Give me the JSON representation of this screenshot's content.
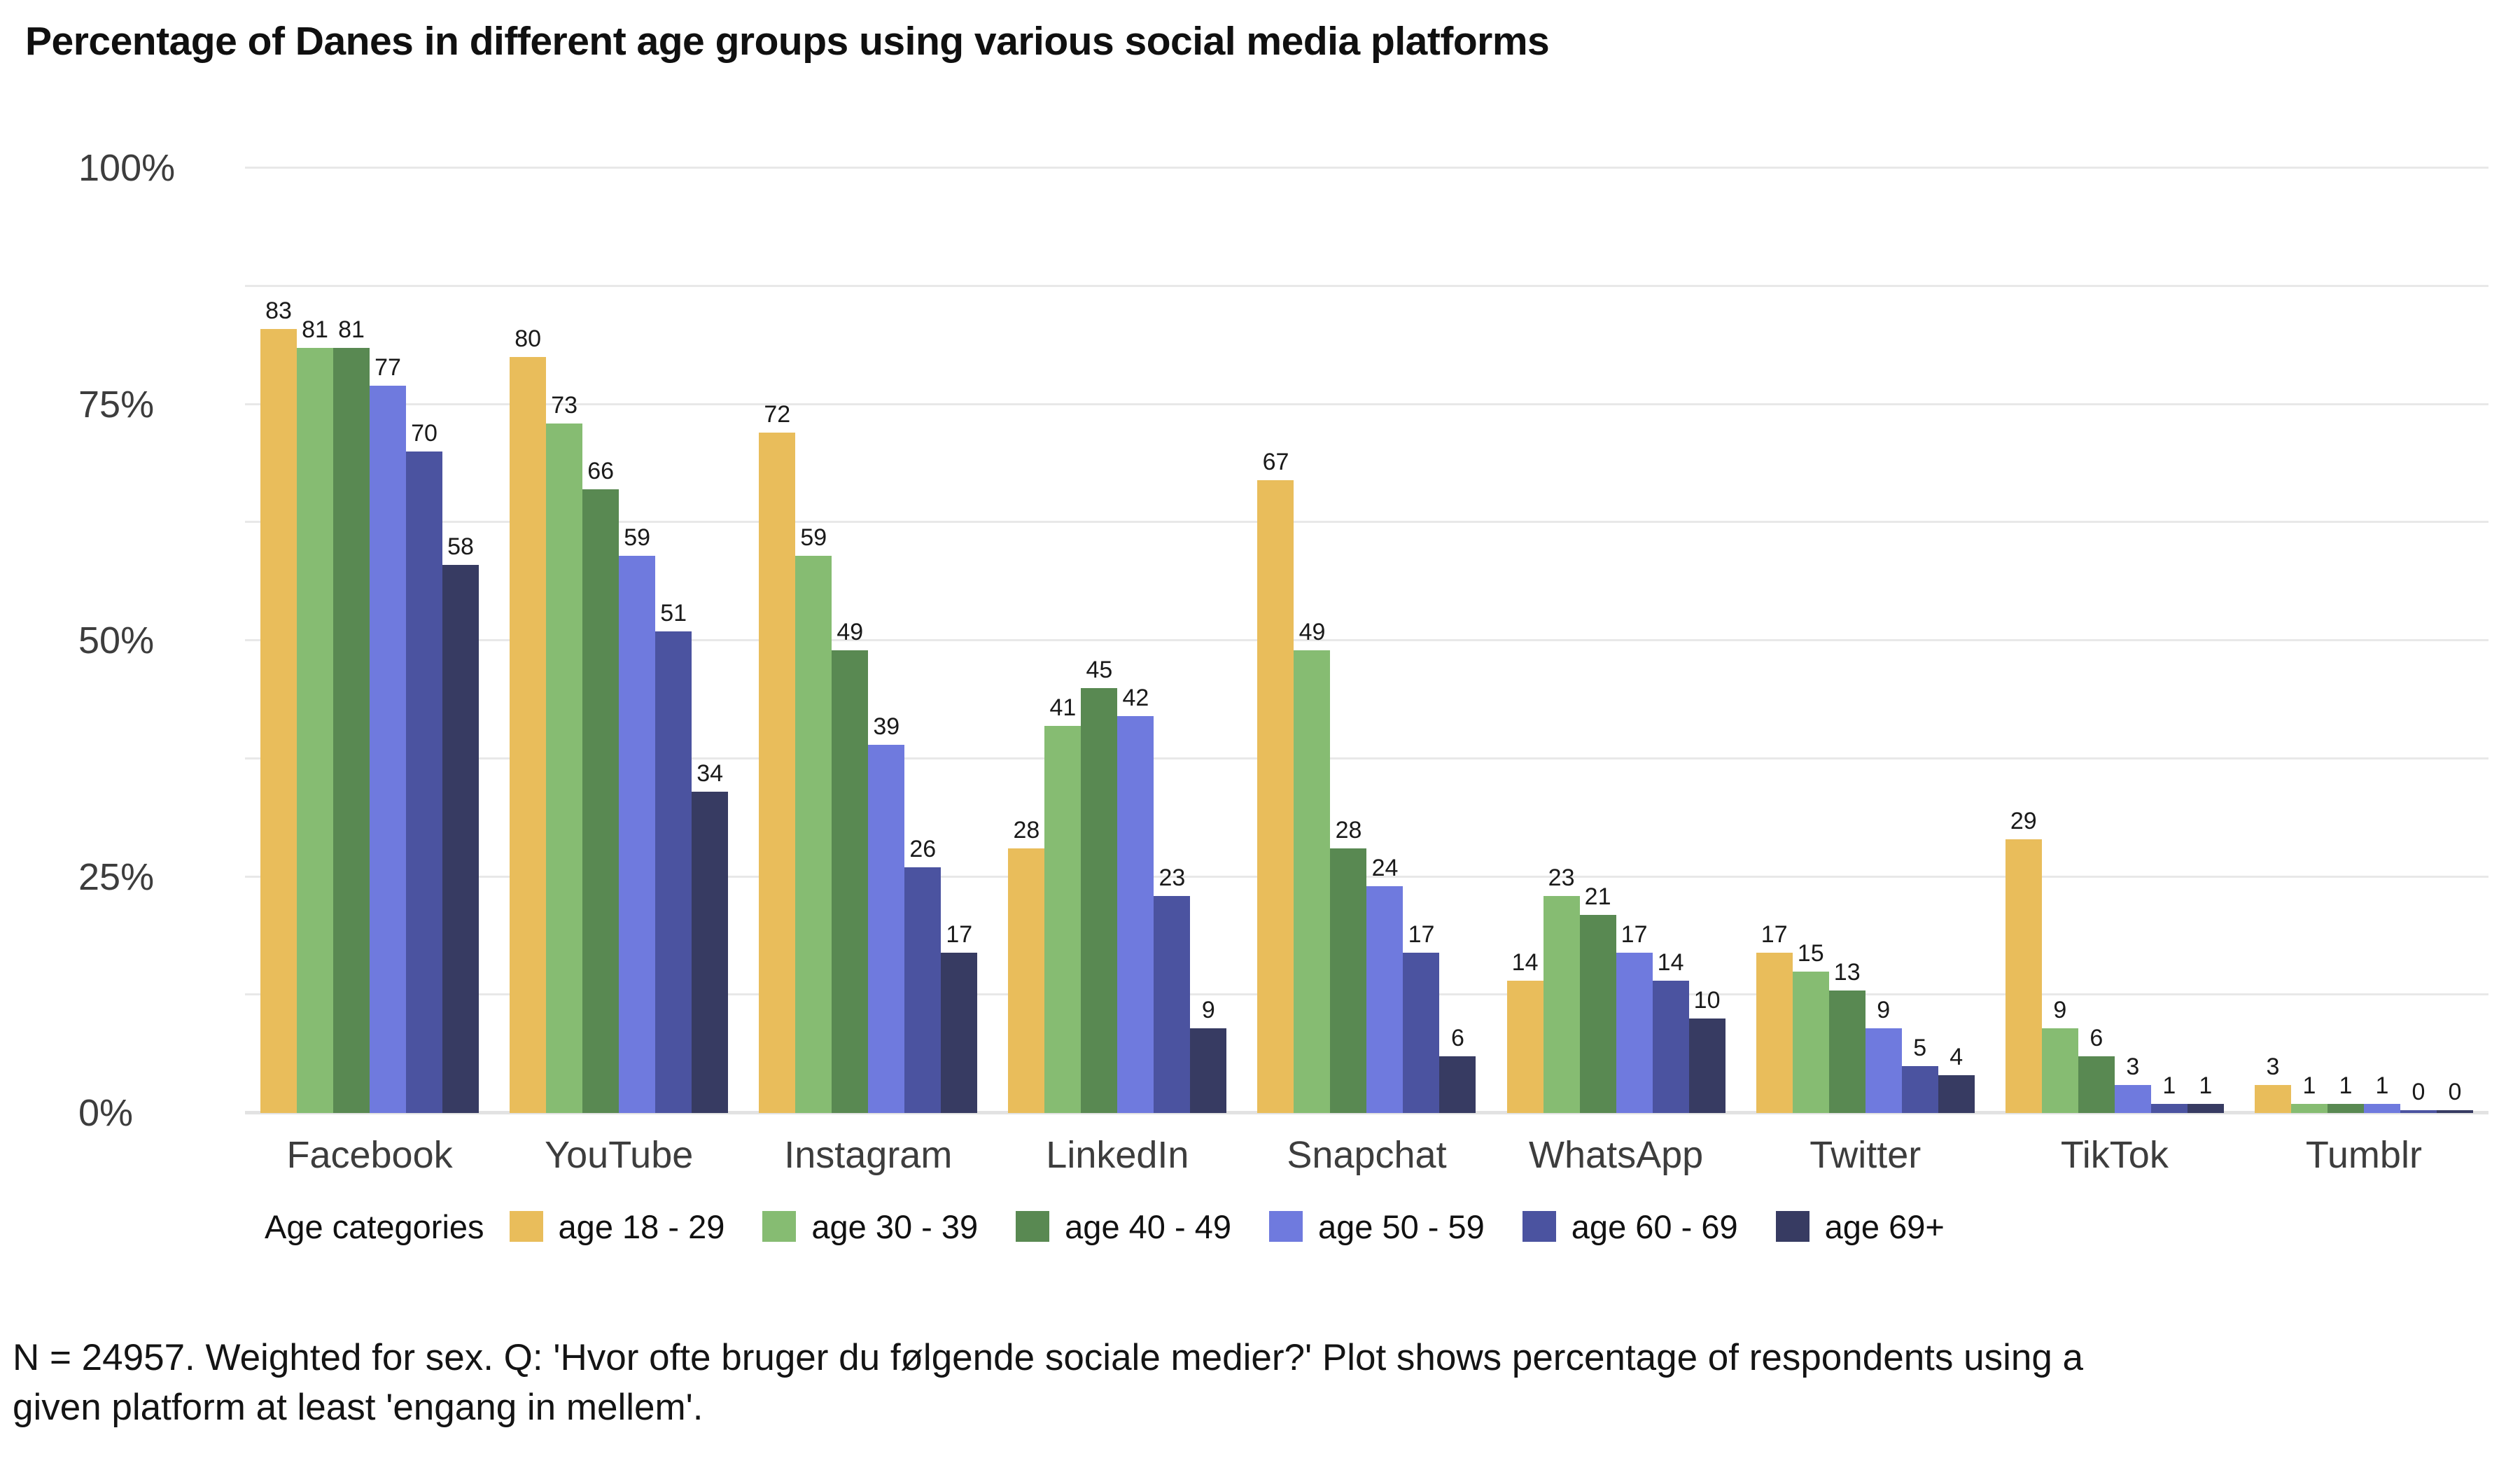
{
  "title": "Percentage of Danes in different age groups using various social media platforms",
  "footer": {
    "note": "N = 24957. Weighted for sex. Q: 'Hvor ofte bruger du følgende sociale medier?' Plot shows percentage of respondents using a\ngiven platform at least 'engang in mellem'."
  },
  "chart_data": {
    "type": "bar",
    "title": "Percentage of Danes in different age groups using various social media platforms",
    "legend_title": "Age categories",
    "legend_position": "bottom",
    "grid": true,
    "value_labels": true,
    "ylim": [
      0,
      100
    ],
    "minor_gridline_step": 12.5,
    "y_ticks": [
      {
        "value": 0,
        "label": "0%"
      },
      {
        "value": 25,
        "label": "25%"
      },
      {
        "value": 50,
        "label": "50%"
      },
      {
        "value": 75,
        "label": "75%"
      },
      {
        "value": 100,
        "label": "100%"
      }
    ],
    "categories": [
      "Facebook",
      "YouTube",
      "Instagram",
      "LinkedIn",
      "Snapchat",
      "WhatsApp",
      "Twitter",
      "TikTok",
      "Tumblr"
    ],
    "series": [
      {
        "name": "age 18 - 29",
        "color": "#E9BD5B",
        "values": [
          83,
          80,
          72,
          28,
          67,
          14,
          17,
          29,
          3
        ]
      },
      {
        "name": "age 30 - 39",
        "color": "#86BC72",
        "values": [
          81,
          73,
          59,
          41,
          49,
          23,
          15,
          9,
          1
        ]
      },
      {
        "name": "age 40 - 49",
        "color": "#598952",
        "values": [
          81,
          66,
          49,
          45,
          28,
          21,
          13,
          6,
          1
        ]
      },
      {
        "name": "age 50 - 59",
        "color": "#6F7ADE",
        "values": [
          77,
          59,
          39,
          42,
          24,
          17,
          9,
          3,
          1
        ]
      },
      {
        "name": "age 60 - 69",
        "color": "#4B53A0",
        "values": [
          70,
          51,
          26,
          23,
          17,
          14,
          5,
          1,
          0
        ]
      },
      {
        "name": "age 69+",
        "color": "#373B62",
        "values": [
          58,
          34,
          17,
          9,
          6,
          10,
          4,
          1,
          0
        ]
      }
    ]
  }
}
